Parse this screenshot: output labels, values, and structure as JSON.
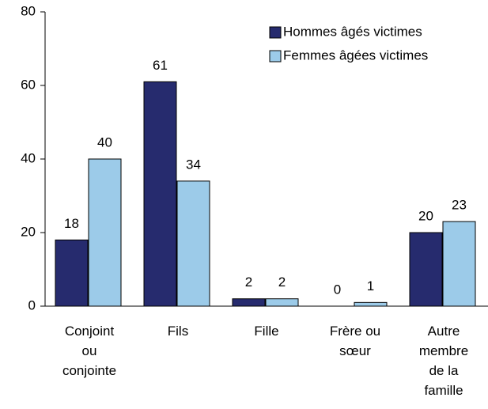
{
  "chart_data": {
    "type": "bar",
    "categories": [
      "Conjoint\nou\nconjointe",
      "Fils",
      "Fille",
      "Frère ou\nsœur",
      "Autre\nmembre\nde la\nfamille"
    ],
    "series": [
      {
        "name": "Hommes âgés victimes",
        "color": "#262b6e",
        "values": [
          18,
          61,
          2,
          0,
          20
        ]
      },
      {
        "name": "Femmes âgées victimes",
        "color": "#9ccbe9",
        "values": [
          40,
          34,
          2,
          1,
          23
        ]
      }
    ],
    "ylim": [
      0,
      80
    ],
    "yticks": [
      0,
      20,
      40,
      60,
      80
    ],
    "grid": false,
    "legend": "top-right"
  }
}
